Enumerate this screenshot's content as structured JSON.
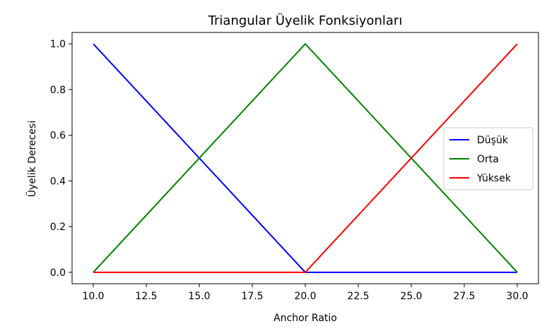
{
  "chart_data": {
    "type": "line",
    "title": "Triangular Üyelik Fonksiyonları",
    "xlabel": "Anchor Ratio",
    "ylabel": "Üyelik Derecesi",
    "xlim": [
      9.0,
      31.0
    ],
    "ylim": [
      -0.05,
      1.05
    ],
    "xticks": [
      10.0,
      12.5,
      15.0,
      17.5,
      20.0,
      22.5,
      25.0,
      27.5,
      30.0
    ],
    "xtick_labels": [
      "10.0",
      "12.5",
      "15.0",
      "17.5",
      "20.0",
      "22.5",
      "25.0",
      "27.5",
      "30.0"
    ],
    "yticks": [
      0.0,
      0.2,
      0.4,
      0.6,
      0.8,
      1.0
    ],
    "ytick_labels": [
      "0.0",
      "0.2",
      "0.4",
      "0.6",
      "0.8",
      "1.0"
    ],
    "grid": false,
    "legend_position": "center-right",
    "series": [
      {
        "name": "Düşük",
        "color": "#0000ff",
        "x": [
          10,
          20,
          30
        ],
        "y": [
          1.0,
          0.0,
          0.0
        ]
      },
      {
        "name": "Orta",
        "color": "#008000",
        "x": [
          10,
          20,
          30
        ],
        "y": [
          0.0,
          1.0,
          0.0
        ]
      },
      {
        "name": "Yüksek",
        "color": "#ff0000",
        "x": [
          10,
          20,
          30
        ],
        "y": [
          0.0,
          0.0,
          1.0
        ]
      }
    ]
  }
}
